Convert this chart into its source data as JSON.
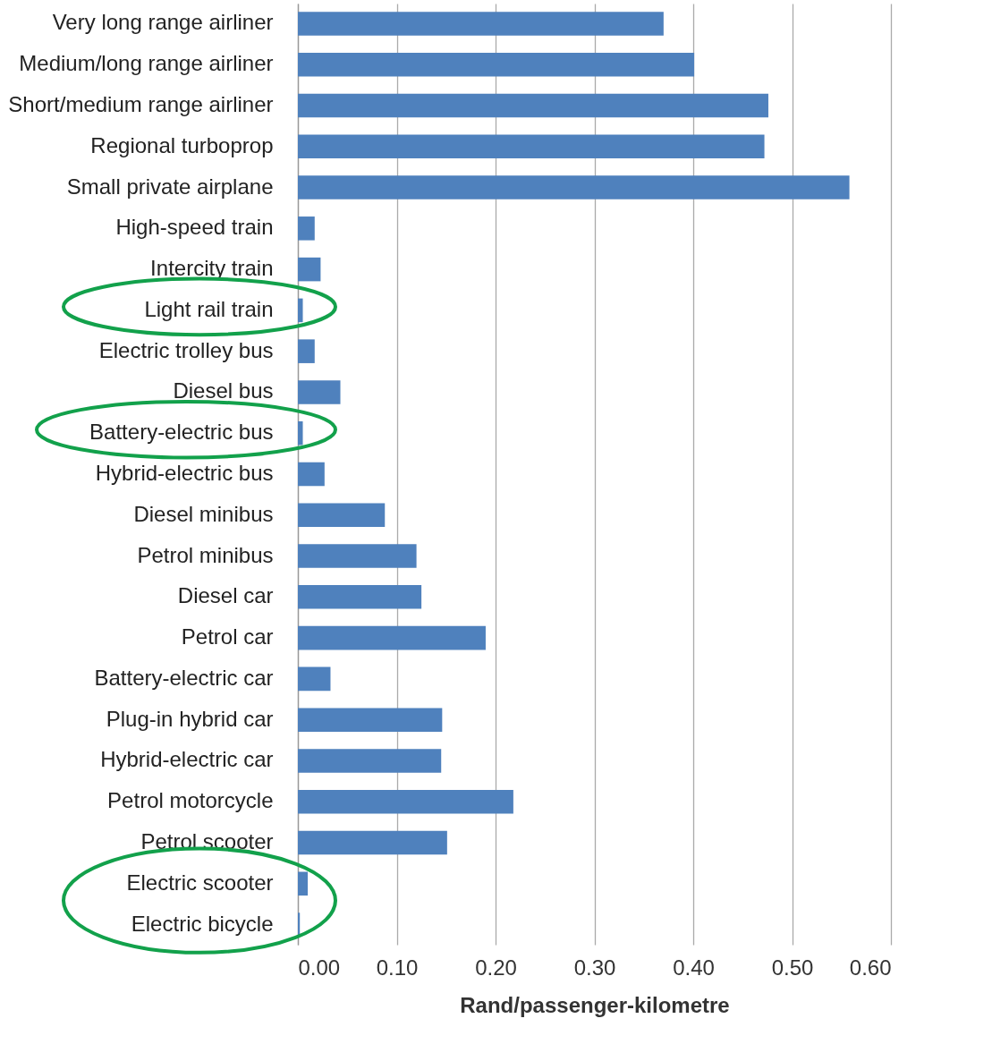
{
  "chart_data": {
    "type": "bar",
    "orientation": "horizontal",
    "xlabel": "Rand/passenger-kilometre",
    "categories": [
      "Very long range airliner",
      "Medium/long range airliner",
      "Short/medium range airliner",
      "Regional turboprop",
      "Small private airplane",
      "High-speed train",
      "Intercity train",
      "Light rail train",
      "Electric trolley bus",
      "Diesel bus",
      "Battery-electric bus",
      "Hybrid-electric bus",
      "Diesel minibus",
      "Petrol minibus",
      "Diesel car",
      "Petrol car",
      "Battery-electric car",
      "Plug-in hybrid car",
      "Hybrid-electric car",
      "Petrol motorcycle",
      "Petrol scooter",
      "Electric scooter",
      "Electric bicycle"
    ],
    "values": [
      0.37,
      0.401,
      0.476,
      0.472,
      0.558,
      0.017,
      0.023,
      0.005,
      0.017,
      0.043,
      0.005,
      0.027,
      0.088,
      0.12,
      0.125,
      0.19,
      0.033,
      0.146,
      0.145,
      0.218,
      0.151,
      0.01,
      0.002
    ],
    "color": "#4f81bd",
    "xlim": [
      0,
      0.6
    ],
    "xticks": [
      {
        "value": 0,
        "label": "0.00"
      },
      {
        "value": 0.1,
        "label": "0.10"
      },
      {
        "value": 0.2,
        "label": "0.20"
      },
      {
        "value": 0.3,
        "label": "0.30"
      },
      {
        "value": 0.4,
        "label": "0.40"
      },
      {
        "value": 0.5,
        "label": "0.50"
      },
      {
        "value": 0.6,
        "label": "0.60"
      }
    ],
    "grid": "x"
  }
}
